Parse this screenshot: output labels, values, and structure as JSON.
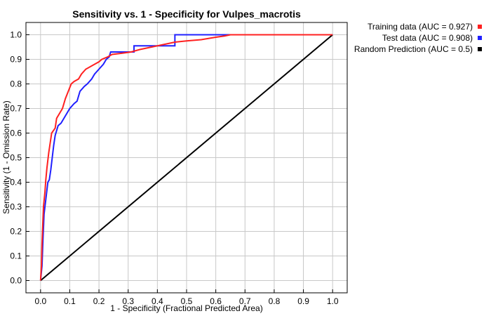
{
  "chart_data": {
    "type": "line",
    "title": "Sensitivity vs. 1 - Specificity for Vulpes_macrotis",
    "xlabel": "1 - Specificity  (Fractional Predicted Area)",
    "ylabel": "Sensitivity  (1 - Omission Rate)",
    "xlim": [
      -0.05,
      1.05
    ],
    "ylim": [
      -0.05,
      1.05
    ],
    "x_ticks": [
      "0.0",
      "0.1",
      "0.2",
      "0.3",
      "0.4",
      "0.5",
      "0.6",
      "0.7",
      "0.8",
      "0.9",
      "1.0"
    ],
    "y_ticks": [
      "0.0",
      "0.1",
      "0.2",
      "0.3",
      "0.4",
      "0.5",
      "0.6",
      "0.7",
      "0.8",
      "0.9",
      "1.0"
    ],
    "grid": true,
    "legend_position": "outside-top-right",
    "series": [
      {
        "name": "Training data (AUC = 0.927)",
        "color": "#ff2020",
        "points": [
          [
            0,
            0
          ],
          [
            0.003,
            0.06
          ],
          [
            0.005,
            0.15
          ],
          [
            0.008,
            0.24
          ],
          [
            0.01,
            0.3
          ],
          [
            0.015,
            0.36
          ],
          [
            0.018,
            0.41
          ],
          [
            0.022,
            0.46
          ],
          [
            0.028,
            0.52
          ],
          [
            0.033,
            0.56
          ],
          [
            0.038,
            0.6
          ],
          [
            0.05,
            0.62
          ],
          [
            0.055,
            0.66
          ],
          [
            0.065,
            0.68
          ],
          [
            0.075,
            0.7
          ],
          [
            0.085,
            0.74
          ],
          [
            0.095,
            0.77
          ],
          [
            0.105,
            0.8
          ],
          [
            0.115,
            0.81
          ],
          [
            0.13,
            0.82
          ],
          [
            0.14,
            0.84
          ],
          [
            0.155,
            0.86
          ],
          [
            0.17,
            0.87
          ],
          [
            0.185,
            0.88
          ],
          [
            0.2,
            0.89
          ],
          [
            0.21,
            0.9
          ],
          [
            0.23,
            0.91
          ],
          [
            0.245,
            0.92
          ],
          [
            0.28,
            0.925
          ],
          [
            0.31,
            0.93
          ],
          [
            0.34,
            0.94
          ],
          [
            0.38,
            0.95
          ],
          [
            0.42,
            0.96
          ],
          [
            0.46,
            0.97
          ],
          [
            0.5,
            0.975
          ],
          [
            0.55,
            0.98
          ],
          [
            0.6,
            0.99
          ],
          [
            0.63,
            0.995
          ],
          [
            0.65,
            1.0
          ],
          [
            1.0,
            1.0
          ]
        ]
      },
      {
        "name": "Test data (AUC = 0.908)",
        "color": "#2020ff",
        "points": [
          [
            0,
            0
          ],
          [
            0.005,
            0.06
          ],
          [
            0.008,
            0.16
          ],
          [
            0.012,
            0.27
          ],
          [
            0.015,
            0.3
          ],
          [
            0.02,
            0.35
          ],
          [
            0.025,
            0.4
          ],
          [
            0.03,
            0.41
          ],
          [
            0.035,
            0.45
          ],
          [
            0.04,
            0.5
          ],
          [
            0.045,
            0.55
          ],
          [
            0.05,
            0.59
          ],
          [
            0.06,
            0.63
          ],
          [
            0.07,
            0.64
          ],
          [
            0.08,
            0.66
          ],
          [
            0.09,
            0.68
          ],
          [
            0.1,
            0.7
          ],
          [
            0.115,
            0.72
          ],
          [
            0.125,
            0.73
          ],
          [
            0.135,
            0.77
          ],
          [
            0.15,
            0.79
          ],
          [
            0.16,
            0.8
          ],
          [
            0.175,
            0.82
          ],
          [
            0.185,
            0.84
          ],
          [
            0.2,
            0.86
          ],
          [
            0.215,
            0.88
          ],
          [
            0.225,
            0.9
          ],
          [
            0.235,
            0.91
          ],
          [
            0.24,
            0.93
          ],
          [
            0.32,
            0.93
          ],
          [
            0.32,
            0.955
          ],
          [
            0.46,
            0.955
          ],
          [
            0.46,
            1.0
          ],
          [
            1.0,
            1.0
          ]
        ]
      },
      {
        "name": "Random Prediction (AUC = 0.5)",
        "color": "#000000",
        "points": [
          [
            0,
            0
          ],
          [
            1,
            1
          ]
        ]
      }
    ]
  }
}
